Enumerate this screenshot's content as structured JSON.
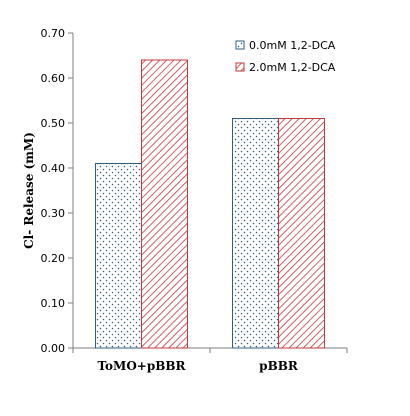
{
  "chart_data": {
    "type": "bar",
    "title": "",
    "xlabel": "",
    "ylabel": "Cl- Release (mM)",
    "categories": [
      "ToMO+pBBR",
      "pBBR"
    ],
    "series": [
      {
        "name": "0.0mM 1,2-DCA",
        "values": [
          0.41,
          0.51
        ],
        "color": "#2e5f7f",
        "pattern": "dots"
      },
      {
        "name": "2.0mM 1,2-DCA",
        "values": [
          0.64,
          0.51
        ],
        "color": "#c0393b",
        "pattern": "diagonal-hatch"
      }
    ],
    "ylim": [
      0,
      0.7
    ],
    "yticks": [
      "0.00",
      "0.10",
      "0.20",
      "0.30",
      "0.40",
      "0.50",
      "0.60",
      "0.70"
    ],
    "grid": false,
    "legend_position": "top-right"
  }
}
